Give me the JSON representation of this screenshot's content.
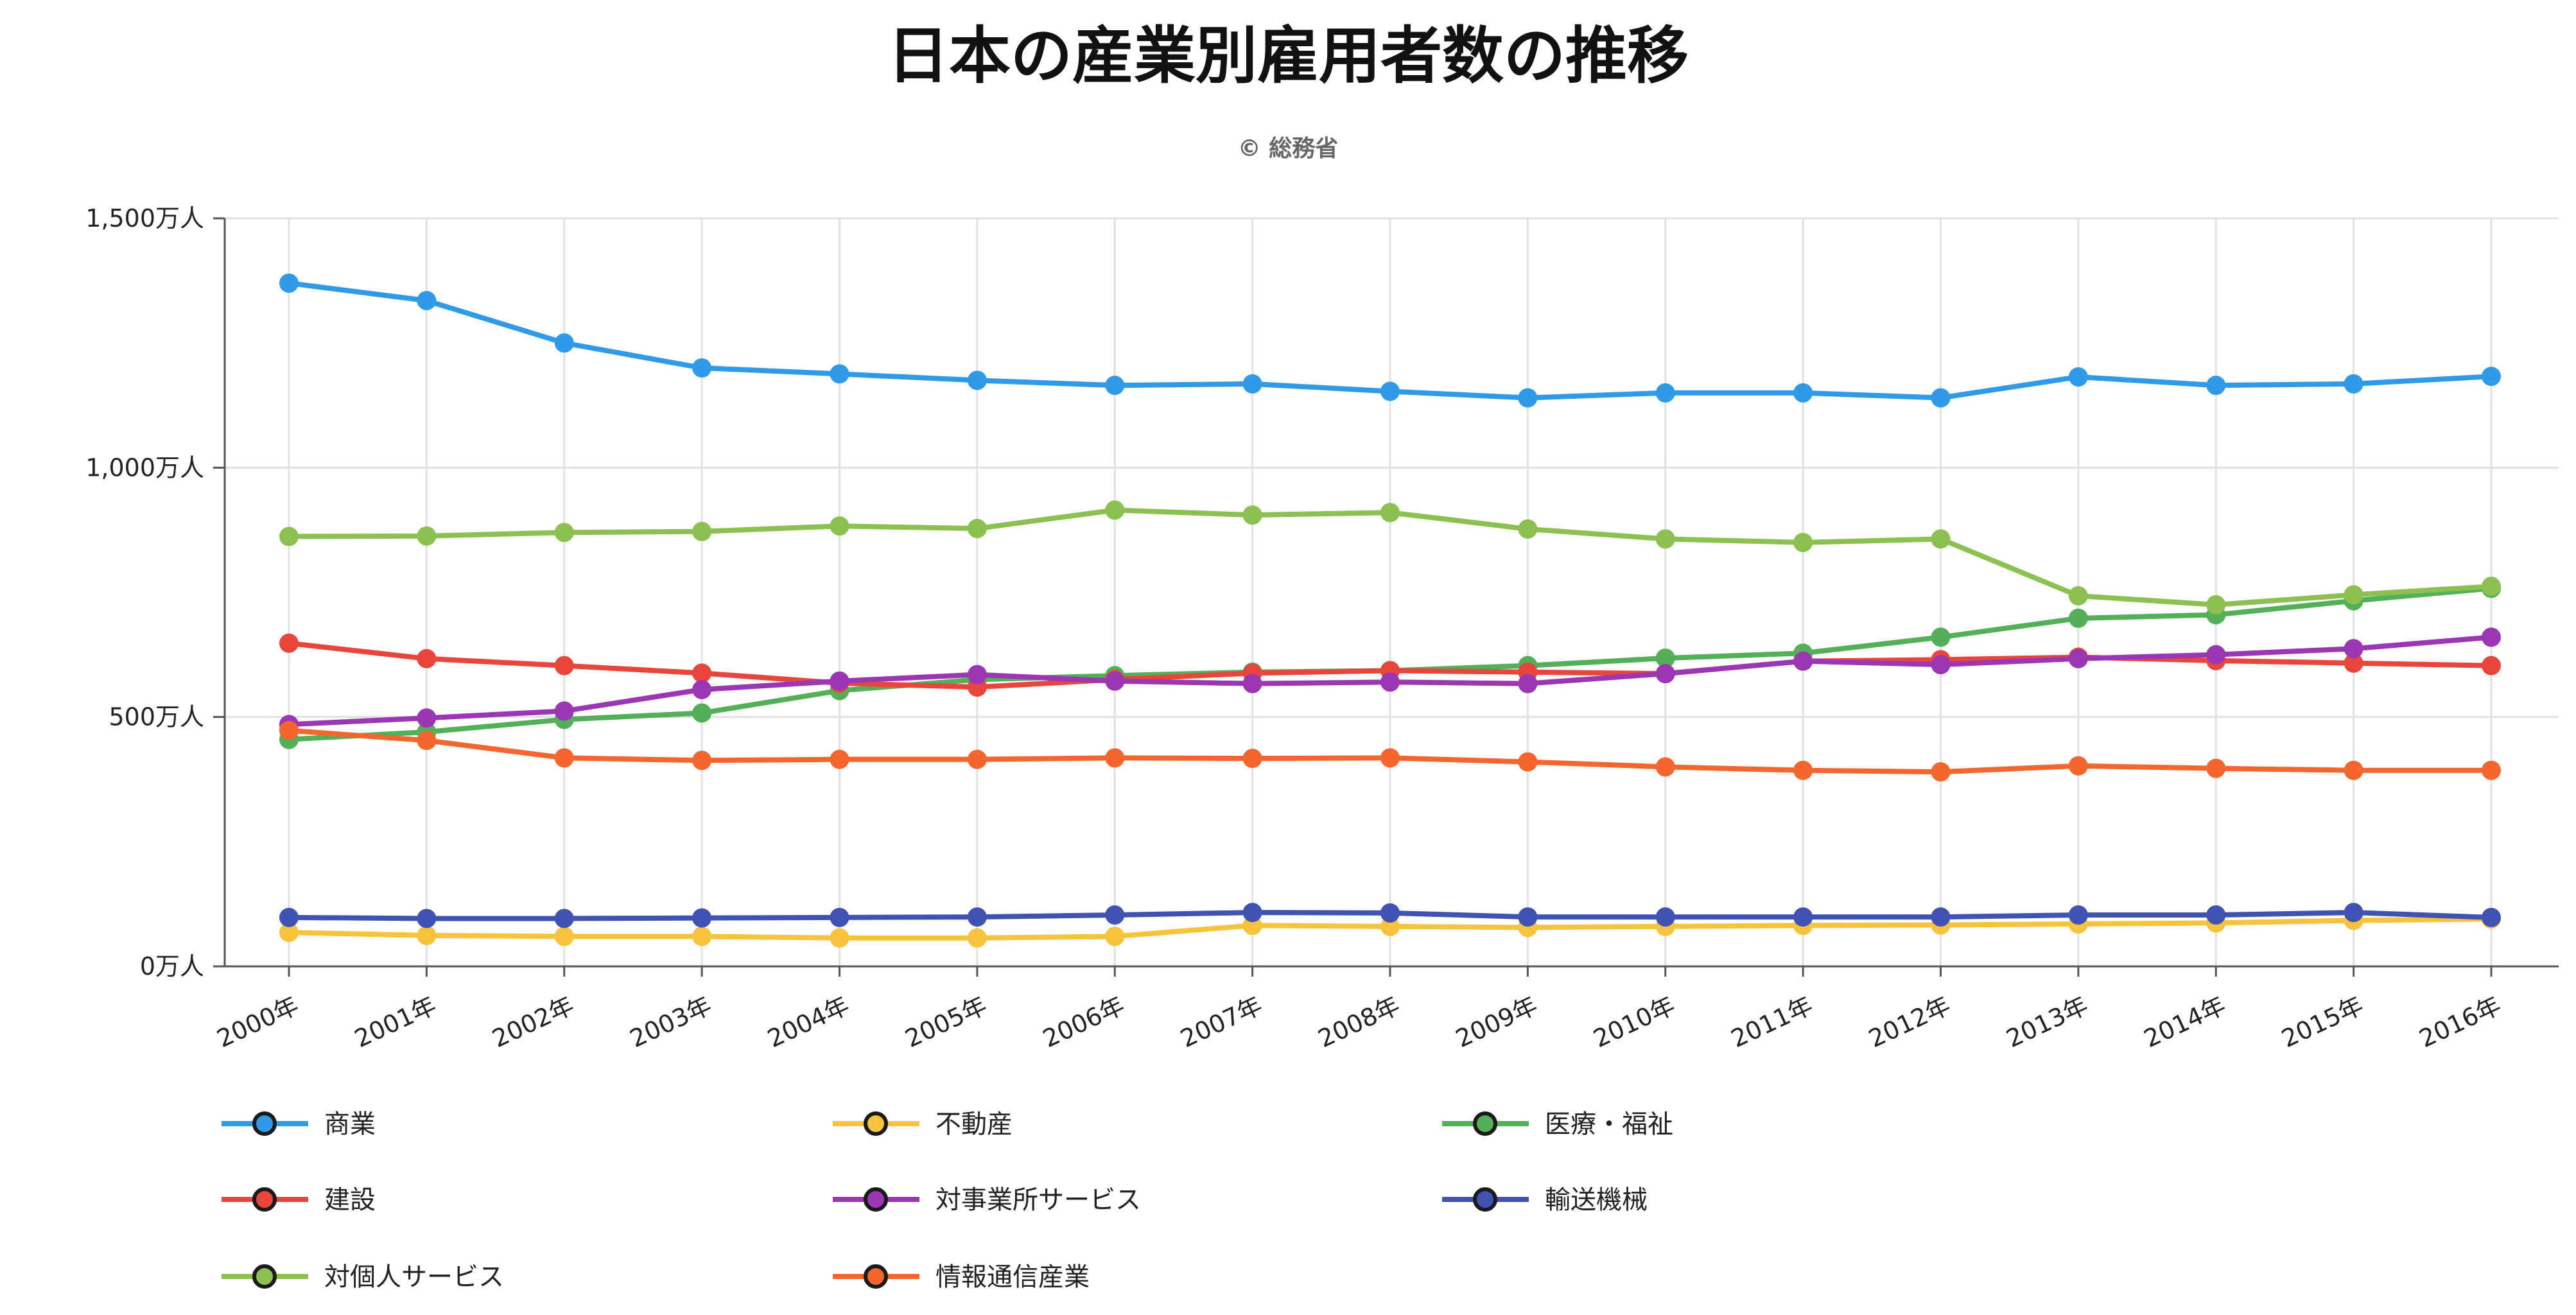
{
  "chart_data": {
    "type": "line",
    "title": "日本の産業別雇用者数の推移",
    "subtitle": "© 総務省",
    "xlabel": "",
    "ylabel": "",
    "ylim": [
      0,
      1500
    ],
    "y_ticks": [
      {
        "value": 0,
        "label": "0万人"
      },
      {
        "value": 500,
        "label": "500万人"
      },
      {
        "value": 1000,
        "label": "1,000万人"
      },
      {
        "value": 1500,
        "label": "1,500万人"
      }
    ],
    "categories": [
      "2000年",
      "2001年",
      "2002年",
      "2003年",
      "2004年",
      "2005年",
      "2006年",
      "2007年",
      "2008年",
      "2009年",
      "2010年",
      "2011年",
      "2012年",
      "2013年",
      "2014年",
      "2015年",
      "2016年"
    ],
    "grid": true,
    "legend_position": "bottom",
    "series": [
      {
        "name": "商業",
        "color": "#2f9be8",
        "values": [
          1370,
          1335,
          1250,
          1200,
          1188,
          1175,
          1165,
          1168,
          1153,
          1140,
          1150,
          1150,
          1140,
          1182,
          1165,
          1168,
          1183
        ]
      },
      {
        "name": "不動産",
        "color": "#f7c33d",
        "values": [
          68,
          62,
          60,
          60,
          57,
          57,
          60,
          82,
          80,
          78,
          80,
          82,
          83,
          85,
          87,
          92,
          95
        ]
      },
      {
        "name": "医療・福祉",
        "color": "#54b058",
        "values": [
          455,
          470,
          495,
          508,
          553,
          575,
          583,
          590,
          593,
          603,
          618,
          628,
          660,
          698,
          705,
          733,
          758
        ]
      },
      {
        "name": "建設",
        "color": "#e8453c",
        "values": [
          648,
          617,
          603,
          588,
          568,
          560,
          575,
          588,
          593,
          590,
          587,
          612,
          615,
          620,
          613,
          608,
          603
        ]
      },
      {
        "name": "対事業所サービス",
        "color": "#9b37b5",
        "values": [
          485,
          498,
          512,
          555,
          572,
          585,
          572,
          567,
          570,
          567,
          587,
          612,
          605,
          617,
          625,
          637,
          660
        ]
      },
      {
        "name": "輸送機械",
        "color": "#4053b3",
        "values": [
          98,
          96,
          96,
          97,
          98,
          99,
          103,
          108,
          107,
          99,
          99,
          99,
          99,
          103,
          103,
          108,
          98
        ]
      },
      {
        "name": "対個人サービス",
        "color": "#8cc152",
        "values": [
          862,
          863,
          870,
          872,
          883,
          878,
          915,
          905,
          910,
          877,
          857,
          850,
          857,
          743,
          725,
          745,
          762
        ]
      },
      {
        "name": "情報通信産業",
        "color": "#f4662d",
        "values": [
          473,
          453,
          418,
          413,
          415,
          415,
          418,
          417,
          418,
          410,
          400,
          393,
          390,
          402,
          397,
          393,
          393
        ]
      }
    ]
  }
}
